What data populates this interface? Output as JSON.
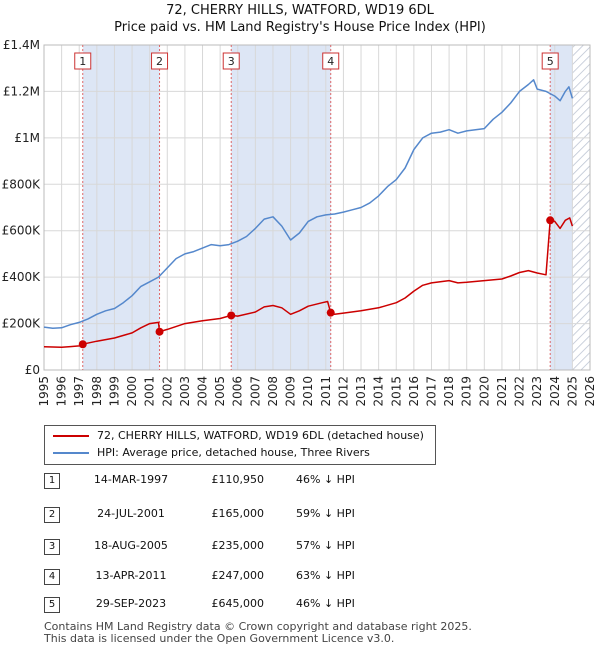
{
  "chart_data": {
    "type": "line",
    "title": "72, CHERRY HILLS, WATFORD, WD19 6DL",
    "subtitle": "Price paid vs. HM Land Registry's House Price Index (HPI)",
    "xlim": [
      1995,
      2026
    ],
    "ylim": [
      0,
      1400000
    ],
    "x_ticks": [
      "1995",
      "1996",
      "1997",
      "1998",
      "1999",
      "2000",
      "2001",
      "2002",
      "2003",
      "2004",
      "2005",
      "2006",
      "2007",
      "2008",
      "2009",
      "2010",
      "2011",
      "2012",
      "2013",
      "2014",
      "2015",
      "2016",
      "2017",
      "2018",
      "2019",
      "2020",
      "2021",
      "2022",
      "2023",
      "2024",
      "2025",
      "2026"
    ],
    "y_ticks": [
      {
        "value": 0,
        "label": "£0"
      },
      {
        "value": 200000,
        "label": "£200K"
      },
      {
        "value": 400000,
        "label": "£400K"
      },
      {
        "value": 600000,
        "label": "£600K"
      },
      {
        "value": 800000,
        "label": "£800K"
      },
      {
        "value": 1000000,
        "label": "£1M"
      },
      {
        "value": 1200000,
        "label": "£1.2M"
      },
      {
        "value": 1400000,
        "label": "£1.4M"
      }
    ],
    "grid": true,
    "series": [
      {
        "name": "72, CHERRY HILLS, WATFORD, WD19 6DL (detached house)",
        "color": "#cc0000",
        "points": [
          [
            1995.0,
            100000
          ],
          [
            1995.5,
            99000
          ],
          [
            1996.0,
            98000
          ],
          [
            1996.5,
            101000
          ],
          [
            1997.0,
            104000
          ],
          [
            1997.2,
            110950
          ],
          [
            1998.0,
            124000
          ],
          [
            1999.0,
            138000
          ],
          [
            2000.0,
            160000
          ],
          [
            2000.5,
            182000
          ],
          [
            2001.0,
            200000
          ],
          [
            2001.5,
            205000
          ],
          [
            2001.56,
            165000
          ],
          [
            2002.0,
            175000
          ],
          [
            2003.0,
            200000
          ],
          [
            2004.0,
            212000
          ],
          [
            2005.0,
            222000
          ],
          [
            2005.63,
            235000
          ],
          [
            2006.0,
            232000
          ],
          [
            2007.0,
            250000
          ],
          [
            2007.5,
            272000
          ],
          [
            2008.0,
            278000
          ],
          [
            2008.5,
            268000
          ],
          [
            2009.0,
            240000
          ],
          [
            2009.5,
            255000
          ],
          [
            2010.0,
            275000
          ],
          [
            2010.8,
            290000
          ],
          [
            2011.1,
            295000
          ],
          [
            2011.28,
            247000
          ],
          [
            2011.5,
            240000
          ],
          [
            2012.0,
            245000
          ],
          [
            2013.0,
            255000
          ],
          [
            2014.0,
            268000
          ],
          [
            2015.0,
            290000
          ],
          [
            2015.5,
            310000
          ],
          [
            2016.0,
            340000
          ],
          [
            2016.5,
            365000
          ],
          [
            2017.0,
            375000
          ],
          [
            2018.0,
            385000
          ],
          [
            2018.5,
            375000
          ],
          [
            2019.0,
            378000
          ],
          [
            2020.0,
            385000
          ],
          [
            2021.0,
            392000
          ],
          [
            2021.5,
            405000
          ],
          [
            2022.0,
            420000
          ],
          [
            2022.5,
            428000
          ],
          [
            2023.0,
            418000
          ],
          [
            2023.5,
            410000
          ],
          [
            2023.74,
            645000
          ],
          [
            2024.0,
            640000
          ],
          [
            2024.3,
            610000
          ],
          [
            2024.6,
            645000
          ],
          [
            2024.85,
            655000
          ],
          [
            2025.0,
            620000
          ]
        ]
      },
      {
        "name": "HPI: Average price, detached house, Three Rivers",
        "color": "#5588cc",
        "points": [
          [
            1995.0,
            185000
          ],
          [
            1995.5,
            180000
          ],
          [
            1996.0,
            182000
          ],
          [
            1996.5,
            195000
          ],
          [
            1997.0,
            205000
          ],
          [
            1997.5,
            220000
          ],
          [
            1998.0,
            240000
          ],
          [
            1998.5,
            255000
          ],
          [
            1999.0,
            265000
          ],
          [
            1999.5,
            290000
          ],
          [
            2000.0,
            320000
          ],
          [
            2000.5,
            360000
          ],
          [
            2001.0,
            380000
          ],
          [
            2001.5,
            400000
          ],
          [
            2002.0,
            440000
          ],
          [
            2002.5,
            480000
          ],
          [
            2003.0,
            500000
          ],
          [
            2003.5,
            510000
          ],
          [
            2004.0,
            525000
          ],
          [
            2004.5,
            540000
          ],
          [
            2005.0,
            535000
          ],
          [
            2005.5,
            540000
          ],
          [
            2006.0,
            555000
          ],
          [
            2006.5,
            575000
          ],
          [
            2007.0,
            610000
          ],
          [
            2007.5,
            650000
          ],
          [
            2008.0,
            660000
          ],
          [
            2008.5,
            620000
          ],
          [
            2009.0,
            560000
          ],
          [
            2009.5,
            590000
          ],
          [
            2010.0,
            640000
          ],
          [
            2010.5,
            660000
          ],
          [
            2011.0,
            668000
          ],
          [
            2011.5,
            672000
          ],
          [
            2012.0,
            680000
          ],
          [
            2012.5,
            690000
          ],
          [
            2013.0,
            700000
          ],
          [
            2013.5,
            720000
          ],
          [
            2014.0,
            750000
          ],
          [
            2014.5,
            790000
          ],
          [
            2015.0,
            820000
          ],
          [
            2015.5,
            870000
          ],
          [
            2016.0,
            950000
          ],
          [
            2016.5,
            1000000
          ],
          [
            2017.0,
            1020000
          ],
          [
            2017.5,
            1025000
          ],
          [
            2018.0,
            1035000
          ],
          [
            2018.5,
            1020000
          ],
          [
            2019.0,
            1030000
          ],
          [
            2019.5,
            1035000
          ],
          [
            2020.0,
            1040000
          ],
          [
            2020.5,
            1080000
          ],
          [
            2021.0,
            1110000
          ],
          [
            2021.5,
            1150000
          ],
          [
            2022.0,
            1200000
          ],
          [
            2022.5,
            1230000
          ],
          [
            2022.8,
            1250000
          ],
          [
            2023.0,
            1210000
          ],
          [
            2023.5,
            1200000
          ],
          [
            2024.0,
            1180000
          ],
          [
            2024.3,
            1160000
          ],
          [
            2024.6,
            1200000
          ],
          [
            2024.8,
            1220000
          ],
          [
            2025.0,
            1170000
          ]
        ]
      }
    ],
    "hatched_from": 2025.0,
    "sales": [
      {
        "n": "1",
        "x": 1997.2,
        "value": 110950,
        "date": "14-MAR-1997",
        "price": "£110,950",
        "hpi": "46% ↓ HPI"
      },
      {
        "n": "2",
        "x": 2001.56,
        "value": 165000,
        "date": "24-JUL-2001",
        "price": "£165,000",
        "hpi": "59% ↓ HPI"
      },
      {
        "n": "3",
        "x": 2005.63,
        "value": 235000,
        "date": "18-AUG-2005",
        "price": "£235,000",
        "hpi": "57% ↓ HPI"
      },
      {
        "n": "4",
        "x": 2011.28,
        "value": 247000,
        "date": "13-APR-2011",
        "price": "£247,000",
        "hpi": "63% ↓ HPI"
      },
      {
        "n": "5",
        "x": 2023.74,
        "value": 645000,
        "date": "29-SEP-2023",
        "price": "£645,000",
        "hpi": "46% ↓ HPI"
      }
    ],
    "shaded_ranges": [
      [
        1997.2,
        2001.56
      ],
      [
        2005.63,
        2011.28
      ],
      [
        2023.74,
        2025.0
      ]
    ]
  },
  "legend": {
    "items": [
      {
        "label": "72, CHERRY HILLS, WATFORD, WD19 6DL (detached house)",
        "color": "#cc0000"
      },
      {
        "label": "HPI: Average price, detached house, Three Rivers",
        "color": "#5588cc"
      }
    ]
  },
  "footer": {
    "line1": "Contains HM Land Registry data © Crown copyright and database right 2025.",
    "line2": "This data is licensed under the Open Government Licence v3.0."
  }
}
